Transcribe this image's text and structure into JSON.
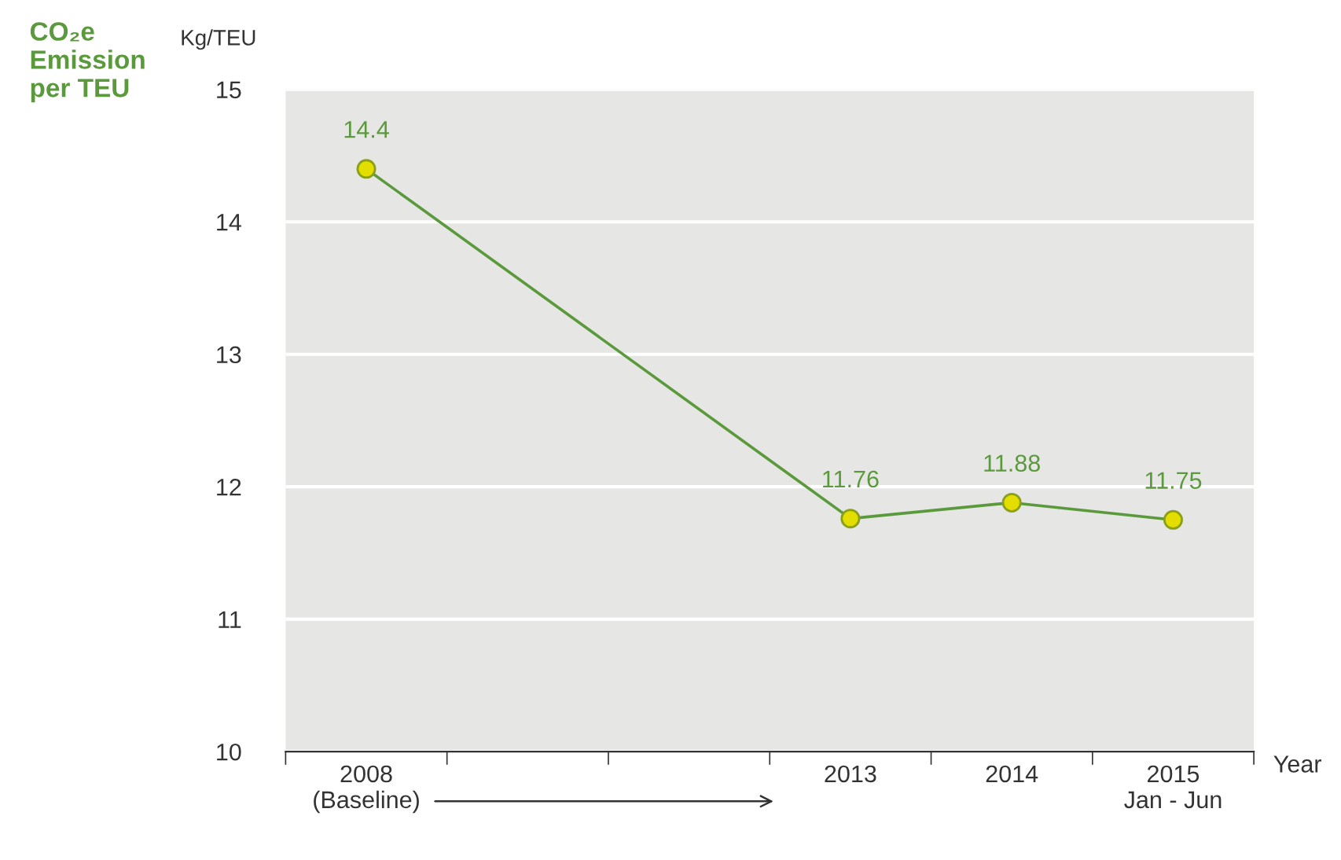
{
  "chart_data": {
    "type": "line",
    "title": "CO₂e\nEmission\nper TEU",
    "ylabel": "Kg/TEU",
    "xlabel": "Year",
    "categories": [
      "2008\n(Baseline)",
      null,
      null,
      "2013",
      "2014",
      "2015\nJan - Jun"
    ],
    "series": [
      {
        "color": "#5b9a3c",
        "values": [
          14.4,
          null,
          null,
          11.76,
          11.88,
          11.75
        ]
      }
    ],
    "ylim": [
      10,
      15
    ],
    "yticks": [
      10,
      11,
      12,
      13,
      14,
      15
    ],
    "grid": "y",
    "marker": "circle",
    "line_style": "solid",
    "data_labels": true
  }
}
